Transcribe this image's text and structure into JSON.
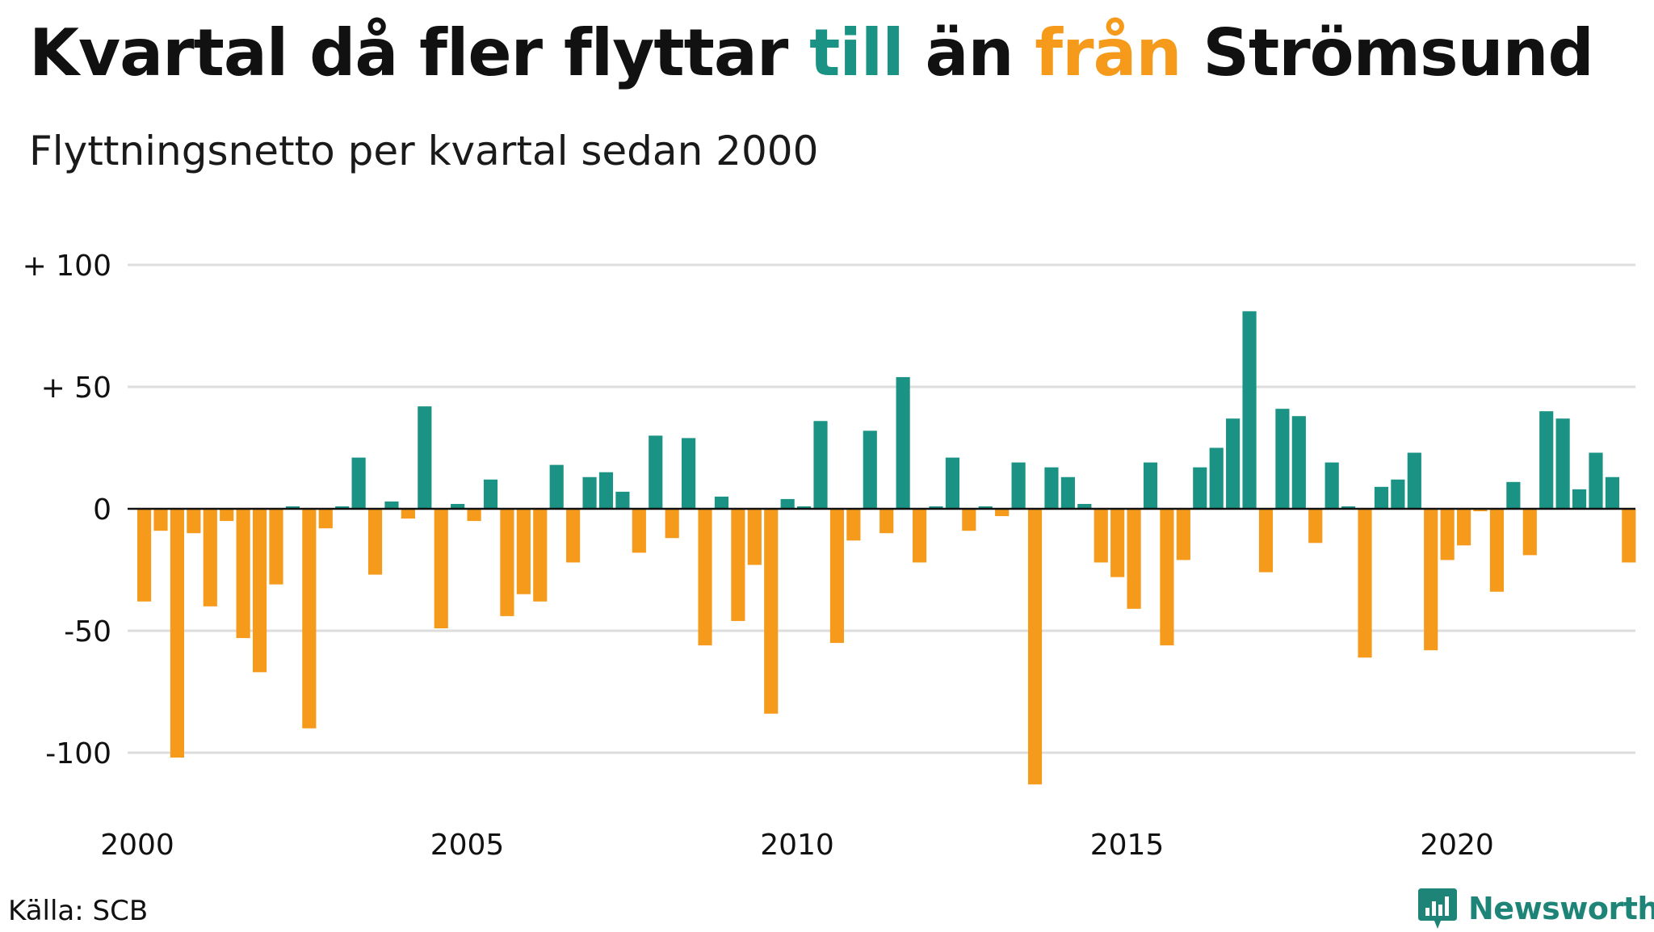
{
  "header": {
    "title_part1": "Kvartal då fler flyttar ",
    "title_till": "till",
    "title_part2": " än ",
    "title_fran": "från",
    "title_part3": " Strömsund",
    "subtitle": "Flyttningsnetto per kvartal sedan 2000"
  },
  "colors": {
    "positive": "#1a9384",
    "negative": "#f59a1a",
    "gridline": "#dddddd",
    "zero_line": "#111111"
  },
  "chart_data": {
    "type": "bar",
    "title": "Kvartal då fler flyttar till än från Strömsund",
    "subtitle": "Flyttningsnetto per kvartal sedan 2000",
    "xlabel": "",
    "ylabel": "",
    "x_start_year": 2000,
    "quarters_per_year": 4,
    "ylim": [
      -120,
      100
    ],
    "yticks": [
      {
        "value": 100,
        "label": "+ 100"
      },
      {
        "value": 50,
        "label": "+  50"
      },
      {
        "value": 0,
        "label": "0"
      },
      {
        "value": -50,
        "label": "-50"
      },
      {
        "value": -100,
        "label": "-100"
      }
    ],
    "xticks": [
      {
        "year": 2000,
        "label": "2000"
      },
      {
        "year": 2005,
        "label": "2005"
      },
      {
        "year": 2010,
        "label": "2010"
      },
      {
        "year": 2015,
        "label": "2015"
      },
      {
        "year": 2020,
        "label": "2020"
      }
    ],
    "values": [
      -38,
      -9,
      -102,
      -10,
      -40,
      -5,
      -53,
      -67,
      -31,
      1,
      -90,
      -8,
      1,
      21,
      -27,
      3,
      -4,
      42,
      -49,
      2,
      -5,
      12,
      -44,
      -35,
      -38,
      18,
      -22,
      13,
      15,
      7,
      -18,
      30,
      -12,
      29,
      -56,
      5,
      -46,
      -23,
      -84,
      4,
      1,
      36,
      -55,
      -13,
      32,
      -10,
      54,
      -22,
      1,
      21,
      -9,
      1,
      -3,
      19,
      -113,
      17,
      13,
      2,
      -22,
      -28,
      -41,
      19,
      -56,
      -21,
      17,
      25,
      37,
      81,
      -26,
      41,
      38,
      -14,
      19,
      1,
      -61,
      9,
      12,
      23,
      -58,
      -21,
      -15,
      -1,
      -34,
      11,
      -19,
      40,
      37,
      8,
      23,
      13,
      -22
    ]
  },
  "footer": {
    "source": "Källa: SCB",
    "brand": "Newsworthy"
  }
}
